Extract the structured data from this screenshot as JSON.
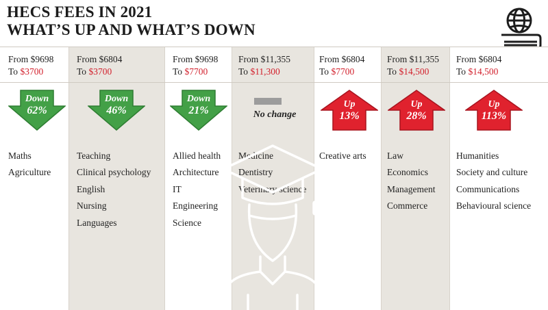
{
  "title": {
    "line1": "HECS FEES IN 2021",
    "line2": "WHAT’S UP AND WHAT’S DOWN"
  },
  "icons": {
    "logo": "globe-book-icon",
    "background": "graduate-icon"
  },
  "colors": {
    "down": "#43a047",
    "up": "#e0222e",
    "to_amount": "#d21f2b",
    "shaded_column": "#e8e5df",
    "no_change_bar": "#9c9c9c"
  },
  "columns": [
    {
      "from": "From $9698",
      "to_prefix": "To ",
      "to_amount": "$3700",
      "direction": "down",
      "label": "Down",
      "percent": "62%",
      "subjects": [
        "Maths",
        "Agriculture"
      ]
    },
    {
      "from": "From $6804",
      "to_prefix": "To ",
      "to_amount": "$3700",
      "direction": "down",
      "label": "Down",
      "percent": "46%",
      "subjects": [
        "Teaching",
        "Clinical psychology",
        "English",
        "Nursing",
        "Languages"
      ]
    },
    {
      "from": "From $9698",
      "to_prefix": "To ",
      "to_amount": "$7700",
      "direction": "down",
      "label": "Down",
      "percent": "21%",
      "subjects": [
        "Allied health",
        "Architecture",
        "IT",
        "Engineering",
        "Science"
      ]
    },
    {
      "from": "From $11,355",
      "to_prefix": "To ",
      "to_amount": "$11,300",
      "direction": "none",
      "label": "No change",
      "percent": "",
      "subjects": [
        "Medicine",
        "Dentistry",
        "Veterinary science"
      ]
    },
    {
      "from": "From $6804",
      "to_prefix": "To ",
      "to_amount": "$7700",
      "direction": "up",
      "label": "Up",
      "percent": "13%",
      "subjects": [
        "Creative arts"
      ]
    },
    {
      "from": "From $11,355",
      "to_prefix": "To ",
      "to_amount": "$14,500",
      "direction": "up",
      "label": "Up",
      "percent": "28%",
      "subjects": [
        "Law",
        "Economics",
        "Management",
        "Commerce"
      ]
    },
    {
      "from": "From $6804",
      "to_prefix": "To ",
      "to_amount": "$14,500",
      "direction": "up",
      "label": "Up",
      "percent": "113%",
      "subjects": [
        "Humanities",
        "Society and culture",
        "Communications",
        "Behavioural science"
      ]
    }
  ]
}
